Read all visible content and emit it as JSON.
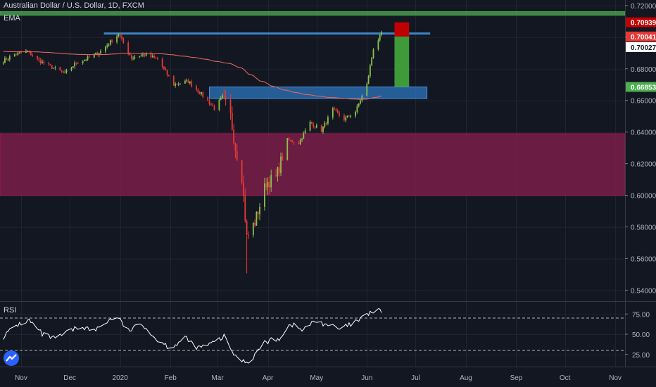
{
  "header": {
    "title": "Australian Dollar / U.S. Dollar, 1D, FXCM",
    "ema_label": "EMA"
  },
  "rsi_pane": {
    "label": "RSI"
  },
  "colors": {
    "bg": "#131722",
    "up": "#8bc34a",
    "down": "#e53935",
    "ema": "#e0675d",
    "rsi": "#ffffff",
    "resistance_band": "#4caf50",
    "demand_zone": "#7b1d49",
    "box": "#2f7fc7",
    "stop": "#c00000",
    "target": "#4caf50"
  },
  "chart_data": [
    {
      "type": "candlestick",
      "title": "Australian Dollar / U.S. Dollar, 1D, FXCM",
      "ylim": [
        0.5335,
        0.7235
      ],
      "xlim": [
        "2019-10-19",
        "2020-11-07"
      ],
      "x_tick_labels": [
        {
          "date": "2019-11-01",
          "label": "Nov"
        },
        {
          "date": "2019-12-01",
          "label": "Dec"
        },
        {
          "date": "2020-01-01",
          "label": "2020"
        },
        {
          "date": "2020-02-01",
          "label": "Feb"
        },
        {
          "date": "2020-03-01",
          "label": "Mar"
        },
        {
          "date": "2020-04-01",
          "label": "Apr"
        },
        {
          "date": "2020-05-01",
          "label": "May"
        },
        {
          "date": "2020-06-01",
          "label": "Jun"
        },
        {
          "date": "2020-07-01",
          "label": "Jul"
        },
        {
          "date": "2020-08-01",
          "label": "Aug"
        },
        {
          "date": "2020-09-01",
          "label": "Sep"
        },
        {
          "date": "2020-10-01",
          "label": "Oct"
        },
        {
          "date": "2020-11-01",
          "label": "Nov"
        }
      ],
      "y_ticks": [
        "0.54000",
        "0.56000",
        "0.58000",
        "0.60000",
        "0.62000",
        "0.64000",
        "0.66000",
        "0.68000",
        "0.70000",
        "0.72000"
      ],
      "price_labels": [
        {
          "value": 0.70939,
          "text": "0.70939",
          "bg": "#c00000",
          "fg": "#ffffff"
        },
        {
          "value": 0.70041,
          "text": "0.70041",
          "bg": "#e53935",
          "fg": "#ffffff"
        },
        {
          "value": 0.70027,
          "text": "0.70027",
          "bg": "#ffffff",
          "fg": "#131722"
        },
        {
          "value": 0.66853,
          "text": "0.66853",
          "bg": "#4caf50",
          "fg": "#ffffff"
        }
      ],
      "waypoints": [
        [
          "2019-10-21",
          0.685
        ],
        [
          "2019-10-28",
          0.689
        ],
        [
          "2019-11-05",
          0.691
        ],
        [
          "2019-11-12",
          0.685
        ],
        [
          "2019-11-20",
          0.681
        ],
        [
          "2019-11-28",
          0.677
        ],
        [
          "2019-12-05",
          0.684
        ],
        [
          "2019-12-13",
          0.687
        ],
        [
          "2019-12-20",
          0.691
        ],
        [
          "2019-12-31",
          0.702
        ],
        [
          "2020-01-08",
          0.687
        ],
        [
          "2020-01-16",
          0.689
        ],
        [
          "2020-01-24",
          0.686
        ],
        [
          "2020-02-03",
          0.67
        ],
        [
          "2020-02-12",
          0.672
        ],
        [
          "2020-02-20",
          0.664
        ],
        [
          "2020-02-28",
          0.655
        ],
        [
          "2020-03-04",
          0.662
        ],
        [
          "2020-03-09",
          0.65
        ],
        [
          "2020-03-12",
          0.63
        ],
        [
          "2020-03-16",
          0.612
        ],
        [
          "2020-03-19",
          0.573
        ],
        [
          "2020-03-24",
          0.583
        ],
        [
          "2020-03-31",
          0.608
        ],
        [
          "2020-04-06",
          0.611
        ],
        [
          "2020-04-13",
          0.635
        ],
        [
          "2020-04-20",
          0.633
        ],
        [
          "2020-04-27",
          0.646
        ],
        [
          "2020-05-04",
          0.641
        ],
        [
          "2020-05-11",
          0.654
        ],
        [
          "2020-05-18",
          0.648
        ],
        [
          "2020-05-25",
          0.653
        ],
        [
          "2020-06-01",
          0.67
        ],
        [
          "2020-06-05",
          0.693
        ],
        [
          "2020-06-10",
          0.702
        ]
      ],
      "annotations": [
        {
          "type": "band",
          "name": "demand-zone",
          "y0": 0.6,
          "y1": 0.639
        },
        {
          "type": "band",
          "name": "resistance-band",
          "y0": 0.7138,
          "y1": 0.7162
        },
        {
          "type": "hline",
          "name": "resistance-line",
          "x0": "2019-12-22",
          "x1": "2020-07-10",
          "y": 0.7023
        },
        {
          "type": "box",
          "name": "support-box",
          "x0": "2020-02-25",
          "x1": "2020-07-08",
          "y0": 0.6612,
          "y1": 0.6685
        },
        {
          "type": "position",
          "name": "long-position",
          "x0": "2020-06-18",
          "x1": "2020-06-27",
          "entry": 0.70041,
          "stop": 0.70939,
          "target": 0.66853
        }
      ]
    },
    {
      "type": "line",
      "title": "RSI",
      "ylim": [
        10,
        90
      ],
      "y_ticks": [
        "25.00",
        "50.00",
        "75.00"
      ],
      "levels": [
        70,
        30
      ],
      "waypoints": [
        [
          "2019-10-21",
          47
        ],
        [
          "2019-10-29",
          61
        ],
        [
          "2019-11-06",
          67
        ],
        [
          "2019-11-14",
          50
        ],
        [
          "2019-11-22",
          44
        ],
        [
          "2019-11-30",
          53
        ],
        [
          "2019-12-08",
          60
        ],
        [
          "2019-12-16",
          54
        ],
        [
          "2019-12-24",
          66
        ],
        [
          "2019-12-30",
          72
        ],
        [
          "2020-01-06",
          54
        ],
        [
          "2020-01-15",
          63
        ],
        [
          "2020-01-22",
          46
        ],
        [
          "2020-02-01",
          33
        ],
        [
          "2020-02-10",
          45
        ],
        [
          "2020-02-18",
          33
        ],
        [
          "2020-02-26",
          38
        ],
        [
          "2020-03-05",
          47
        ],
        [
          "2020-03-12",
          22
        ],
        [
          "2020-03-20",
          15
        ],
        [
          "2020-03-30",
          40
        ],
        [
          "2020-04-08",
          45
        ],
        [
          "2020-04-15",
          63
        ],
        [
          "2020-04-22",
          55
        ],
        [
          "2020-04-30",
          66
        ],
        [
          "2020-05-08",
          62
        ],
        [
          "2020-05-15",
          56
        ],
        [
          "2020-05-22",
          62
        ],
        [
          "2020-05-28",
          68
        ],
        [
          "2020-06-03",
          77
        ],
        [
          "2020-06-10",
          79
        ]
      ]
    }
  ]
}
